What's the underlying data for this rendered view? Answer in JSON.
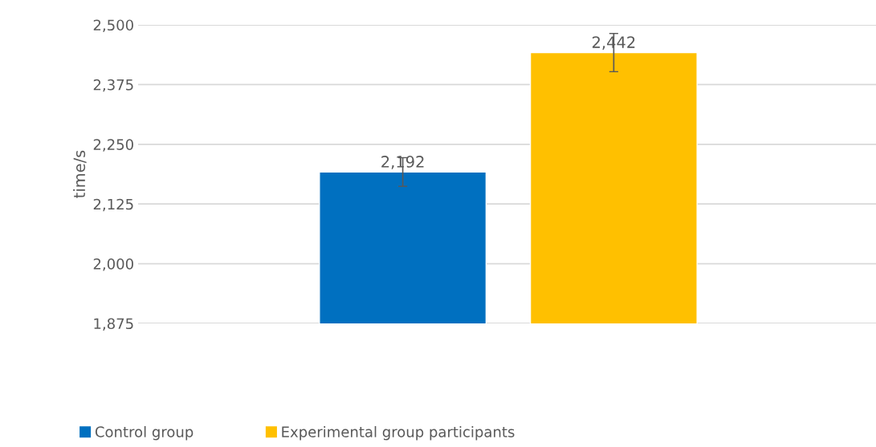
{
  "chart_data": {
    "type": "bar",
    "ylabel": "time/s",
    "categories": [
      null
    ],
    "series": [
      {
        "name": "Control group",
        "color": "#0070c0",
        "values": [
          2192
        ],
        "errors": [
          30
        ],
        "value_labels": [
          "2,192"
        ]
      },
      {
        "name": "Experimental group participants",
        "color": "#ffc000",
        "values": [
          2442
        ],
        "errors": [
          40
        ],
        "value_labels": [
          "2,442"
        ]
      }
    ],
    "ylim": [
      1875,
      2500
    ],
    "yticks": [
      {
        "value": 1875,
        "label": "1,875"
      },
      {
        "value": 2000,
        "label": "2,000"
      },
      {
        "value": 2125,
        "label": "2,125"
      },
      {
        "value": 2250,
        "label": "2,250"
      },
      {
        "value": 2375,
        "label": "2,375"
      },
      {
        "value": 2500,
        "label": "2,500"
      }
    ],
    "grid": "y",
    "legend": "bottom left"
  }
}
